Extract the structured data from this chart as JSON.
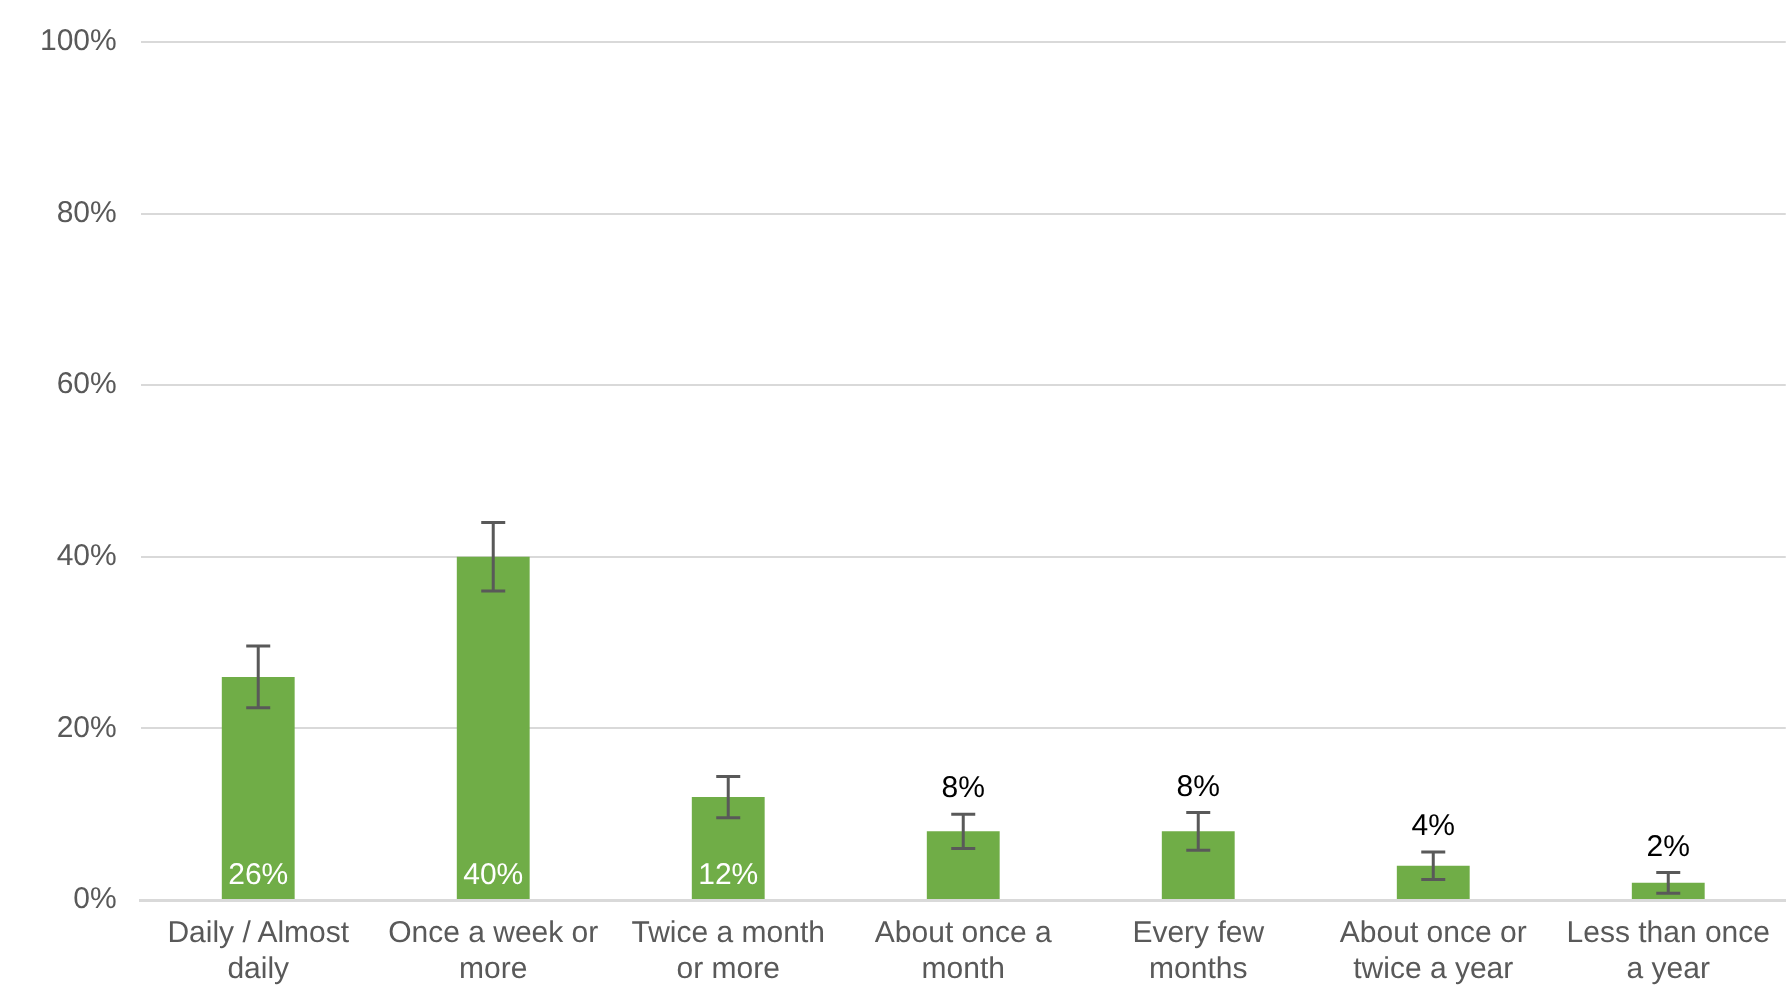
{
  "chart_data": {
    "type": "bar",
    "categories": [
      "Daily / Almost daily",
      "Once a week or more",
      "Twice a month or more",
      "About once a month",
      "Every few months",
      "About once or twice a year",
      "Less than once a year"
    ],
    "values": [
      26,
      40,
      12,
      8,
      8,
      4,
      2
    ],
    "errors": [
      3.6,
      4,
      2.4,
      2,
      2.2,
      1.6,
      1.2
    ],
    "color": "#70ad47",
    "ylim": [
      0,
      100
    ],
    "yticks": [
      {
        "value": 0,
        "label": "0%"
      },
      {
        "value": 20,
        "label": "20%"
      },
      {
        "value": 40,
        "label": "40%"
      },
      {
        "value": 60,
        "label": "60%"
      },
      {
        "value": 80,
        "label": "80%"
      },
      {
        "value": 100,
        "label": "100%"
      }
    ],
    "grid": "y",
    "value_labels": [
      "26%",
      "40%",
      "12%",
      "8%",
      "8%",
      "4%",
      "2%"
    ],
    "legend": false
  }
}
